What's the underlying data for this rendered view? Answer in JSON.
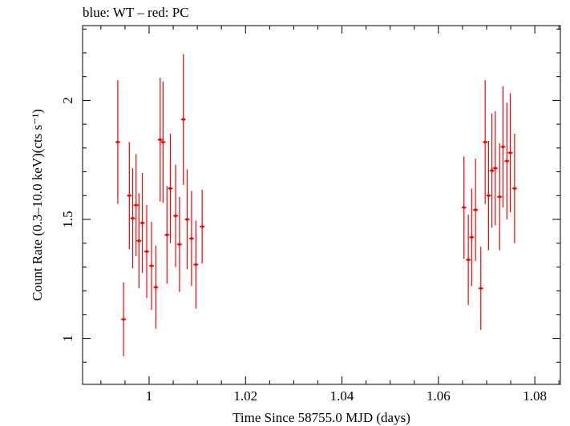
{
  "chart_data": {
    "type": "scatter",
    "title": "blue: WT – red: PC",
    "xlabel": "Time Since 58755.0 MJD (days)",
    "ylabel": "Count Rate (0.3–10.0 keV)(cts s⁻¹)",
    "xlim": [
      0.9862,
      1.0853
    ],
    "ylim": [
      0.8066,
      2.3144
    ],
    "x_ticks": [
      1,
      1.02,
      1.04,
      1.06,
      1.08
    ],
    "x_tick_labels": [
      "1",
      "1.02",
      "1.04",
      "1.06",
      "1.08"
    ],
    "y_ticks": [
      1,
      1.5,
      2
    ],
    "y_tick_labels": [
      "1",
      "1.5",
      "2"
    ],
    "grid": false,
    "series": [
      {
        "color": "#ff0000",
        "points": [
          {
            "x": 0.9935,
            "y": 1.825,
            "err": 0.26
          },
          {
            "x": 0.9947,
            "y": 1.08,
            "err": 0.155
          },
          {
            "x": 0.9959,
            "y": 1.6,
            "err": 0.225
          },
          {
            "x": 0.9966,
            "y": 1.505,
            "err": 0.21
          },
          {
            "x": 0.9973,
            "y": 1.56,
            "err": 0.215
          },
          {
            "x": 0.9979,
            "y": 1.41,
            "err": 0.2
          },
          {
            "x": 0.9986,
            "y": 1.485,
            "err": 0.21
          },
          {
            "x": 0.9995,
            "y": 1.365,
            "err": 0.195
          },
          {
            "x": 1.0005,
            "y": 1.305,
            "err": 0.185
          },
          {
            "x": 1.0014,
            "y": 1.215,
            "err": 0.175
          },
          {
            "x": 1.0023,
            "y": 1.835,
            "err": 0.26
          },
          {
            "x": 1.0029,
            "y": 1.825,
            "err": 0.255
          },
          {
            "x": 1.0037,
            "y": 1.435,
            "err": 0.205
          },
          {
            "x": 1.0044,
            "y": 1.63,
            "err": 0.23
          },
          {
            "x": 1.0055,
            "y": 1.515,
            "err": 0.215
          },
          {
            "x": 1.0063,
            "y": 1.395,
            "err": 0.2
          },
          {
            "x": 1.0071,
            "y": 1.92,
            "err": 0.275
          },
          {
            "x": 1.0079,
            "y": 1.5,
            "err": 0.21
          },
          {
            "x": 1.0088,
            "y": 1.42,
            "err": 0.2
          },
          {
            "x": 1.0097,
            "y": 1.31,
            "err": 0.185
          },
          {
            "x": 1.011,
            "y": 1.47,
            "err": 0.155
          },
          {
            "x": 1.0653,
            "y": 1.55,
            "err": 0.215
          },
          {
            "x": 1.0662,
            "y": 1.33,
            "err": 0.19
          },
          {
            "x": 1.0669,
            "y": 1.425,
            "err": 0.205
          },
          {
            "x": 1.0677,
            "y": 1.54,
            "err": 0.215
          },
          {
            "x": 1.0688,
            "y": 1.21,
            "err": 0.175
          },
          {
            "x": 1.0697,
            "y": 1.825,
            "err": 0.26
          },
          {
            "x": 1.0704,
            "y": 1.6,
            "err": 0.23
          },
          {
            "x": 1.0711,
            "y": 1.705,
            "err": 0.24
          },
          {
            "x": 1.0718,
            "y": 1.715,
            "err": 0.24
          },
          {
            "x": 1.0727,
            "y": 1.595,
            "err": 0.225
          },
          {
            "x": 1.0734,
            "y": 1.805,
            "err": 0.255
          },
          {
            "x": 1.0742,
            "y": 1.745,
            "err": 0.245
          },
          {
            "x": 1.0749,
            "y": 1.78,
            "err": 0.25
          },
          {
            "x": 1.0758,
            "y": 1.63,
            "err": 0.23
          }
        ]
      }
    ]
  }
}
